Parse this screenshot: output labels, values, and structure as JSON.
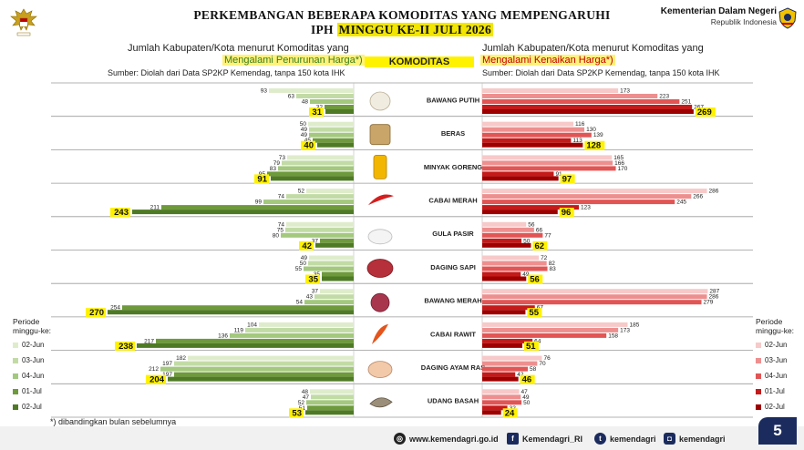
{
  "header": {
    "title_line1": "PERKEMBANGAN BEBERAPA KOMODITAS YANG MEMPENGARUHI",
    "title_line2_a": "IPH ",
    "title_line2_b": "MINGGU KE-II JULI 2026",
    "ministry_name": "Kementerian Dalam Negeri",
    "ministry_sub": "Republik Indonesia"
  },
  "left_header": {
    "line1": "Jumlah Kabupaten/Kota menurut Komoditas yang",
    "line2": "Mengalami Penurunan Harga*)",
    "source": "Sumber: Diolah dari Data SP2KP Kemendag, tanpa 150 kota IHK"
  },
  "right_header": {
    "line1": "Jumlah Kabupaten/Kota menurut Komoditas yang",
    "line2": "Mengalami Kenaikan Harga*)",
    "source": "Sumber: Diolah dari Data SP2KP Kemendag, tanpa 150 kota IHK"
  },
  "komoditas_header": "KOMODITAS",
  "legend_left": {
    "title_line1": "Periode",
    "title_line2": "minggu-ke:",
    "items": [
      "02-Jun",
      "03-Jun",
      "04-Jun",
      "01-Jul",
      "02-Jul"
    ],
    "colors": [
      "#dfeccc",
      "#c2dba6",
      "#a3c87e",
      "#6e9a3c",
      "#4f7a25"
    ]
  },
  "legend_right": {
    "title_line1": "Periode",
    "title_line2": "minggu-ke:",
    "items": [
      "02-Jun",
      "03-Jun",
      "04-Jun",
      "01-Jul",
      "02-Jul"
    ],
    "colors": [
      "#f7c9c9",
      "#ee8f8f",
      "#e15555",
      "#c41a1a",
      "#9e0000"
    ]
  },
  "chart_data": [
    {
      "type": "bar",
      "orientation": "horizontal",
      "direction": "leftward",
      "title": "Mengalami Penurunan Harga*)",
      "periods": [
        "02-Jun",
        "03-Jun",
        "04-Jun",
        "01-Jul",
        "02-Jul"
      ],
      "categories": [
        "BAWANG PUTIH",
        "BERAS",
        "MINYAK GORENG",
        "CABAI MERAH",
        "GULA PASIR",
        "DAGING SAPI",
        "BAWANG MERAH",
        "CABAI RAWIT",
        "DAGING AYAM RAS",
        "UDANG BASAH"
      ],
      "values": [
        [
          93,
          63,
          48,
          32,
          31
        ],
        [
          50,
          49,
          49,
          45,
          40
        ],
        [
          73,
          79,
          83,
          95,
          91
        ],
        [
          52,
          74,
          99,
          211,
          243
        ],
        [
          74,
          75,
          80,
          37,
          42
        ],
        [
          49,
          50,
          55,
          35,
          35
        ],
        [
          37,
          43,
          54,
          254,
          270
        ],
        [
          104,
          119,
          136,
          217,
          238
        ],
        [
          182,
          197,
          212,
          197,
          204
        ],
        [
          48,
          47,
          52,
          51,
          53
        ]
      ],
      "xlim": [
        0,
        280
      ]
    },
    {
      "type": "bar",
      "orientation": "horizontal",
      "direction": "rightward",
      "title": "Mengalami Kenaikan Harga*)",
      "periods": [
        "02-Jun",
        "03-Jun",
        "04-Jun",
        "01-Jul",
        "02-Jul"
      ],
      "categories": [
        "BAWANG PUTIH",
        "BERAS",
        "MINYAK GORENG",
        "CABAI MERAH",
        "GULA PASIR",
        "DAGING SAPI",
        "BAWANG MERAH",
        "CABAI RAWIT",
        "DAGING AYAM RAS",
        "UDANG BASAH"
      ],
      "values": [
        [
          173,
          223,
          251,
          267,
          269
        ],
        [
          116,
          130,
          139,
          113,
          128
        ],
        [
          165,
          166,
          170,
          91,
          97
        ],
        [
          286,
          266,
          245,
          123,
          96
        ],
        [
          56,
          66,
          77,
          50,
          62
        ],
        [
          72,
          82,
          83,
          49,
          56
        ],
        [
          287,
          286,
          279,
          67,
          55
        ],
        [
          185,
          173,
          158,
          64,
          51
        ],
        [
          76,
          70,
          58,
          42,
          46
        ],
        [
          47,
          49,
          50,
          32,
          24
        ]
      ],
      "xlim": [
        0,
        290
      ]
    }
  ],
  "footnote": "*) dibandingkan bulan sebelumnya",
  "footer": {
    "website": "www.kemendagri.go.id",
    "facebook": "Kemendagri_RI",
    "twitter": "kemendagri",
    "instagram": "kemendagri"
  },
  "page_number": "5"
}
